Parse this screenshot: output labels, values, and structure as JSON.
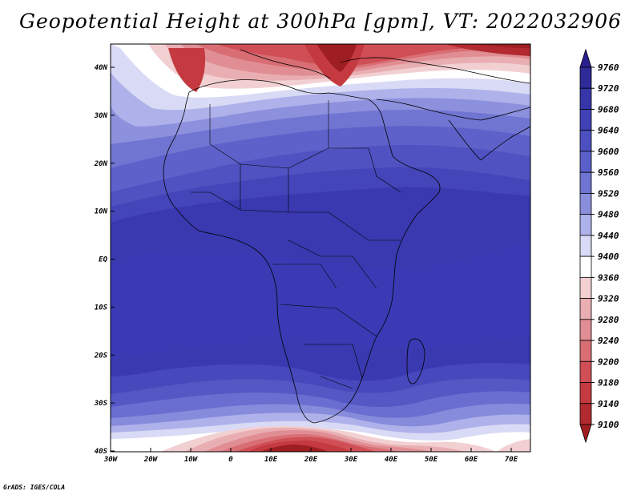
{
  "title": "Geopotential Height at 300hPa [gpm], VT: 2022032906",
  "footer": "GrADS: IGES/COLA",
  "map": {
    "lat_labels": [
      "40N",
      "30N",
      "20N",
      "10N",
      "EQ",
      "10S",
      "20S",
      "30S",
      "40S"
    ],
    "lon_labels": [
      "30W",
      "20W",
      "10W",
      "0",
      "10E",
      "20E",
      "30E",
      "40E",
      "50E",
      "60E",
      "70E"
    ]
  },
  "colorbar": {
    "labels": [
      "9760",
      "9720",
      "9680",
      "9640",
      "9600",
      "9560",
      "9520",
      "9480",
      "9440",
      "9400",
      "9360",
      "9320",
      "9280",
      "9240",
      "9200",
      "9180",
      "9140",
      "9100"
    ],
    "colors": [
      "#2a1f8f",
      "#2e2a98",
      "#3636a8",
      "#3f41b6",
      "#4c50c0",
      "#5a60c8",
      "#6f74d2",
      "#8a8fdc",
      "#aeb1ea",
      "#d9daf5",
      "#ffffff",
      "#f2d0d2",
      "#e9aeb2",
      "#e08e93",
      "#d86e74",
      "#d04e55",
      "#c43a40",
      "#b22a2f",
      "#9e1e22"
    ]
  }
}
